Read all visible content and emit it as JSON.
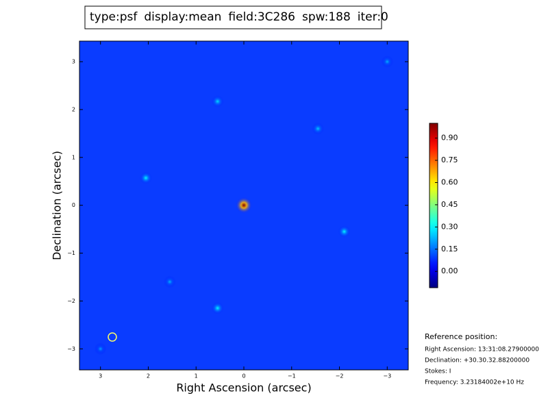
{
  "chart_data": {
    "type": "image",
    "title_parts": [
      {
        "text": "type:psf",
        "color": "#000000"
      },
      {
        "text": "display:mean",
        "color": "#ff0000"
      },
      {
        "text": "field:3C286",
        "color": "#000000"
      },
      {
        "text": "spw:188",
        "color": "#000000"
      },
      {
        "text": "iter:0",
        "color": "#000000"
      }
    ],
    "x_label": "Right Ascension (arcsec)",
    "y_label": "Declination (arcsec)",
    "xlim": [
      3.44,
      -3.44
    ],
    "ylim": [
      -3.44,
      3.43
    ],
    "xticks": [
      3,
      2,
      1,
      0,
      {
        "value": -1,
        "label": "−1"
      },
      {
        "value": -2,
        "label": "−2"
      },
      {
        "value": -3,
        "label": "−3"
      }
    ],
    "yticks": [
      3,
      2,
      1,
      0,
      {
        "value": -1,
        "label": "−1"
      },
      {
        "value": -2,
        "label": "−2"
      },
      {
        "value": -3,
        "label": "−3"
      }
    ],
    "colormap": "jet",
    "clim": [
      -0.11,
      1.0
    ],
    "cticks": [
      {
        "value": 0,
        "label": "0.00"
      },
      {
        "value": 0.15,
        "label": "0.15"
      },
      {
        "value": 0.3,
        "label": "0.30"
      },
      {
        "value": 0.45,
        "label": "0.45"
      },
      {
        "value": 0.6,
        "label": "0.60"
      },
      {
        "value": 0.75,
        "label": "0.75"
      },
      {
        "value": 0.9,
        "label": "0.90"
      }
    ],
    "peaks": {
      "x": [
        0,
        2.05,
        -2.1,
        0.55,
        -1.55,
        0.55,
        -3.0,
        1.55,
        3.0
      ],
      "y": [
        0,
        0.57,
        -0.55,
        -2.15,
        1.6,
        2.17,
        3.0,
        -1.6,
        -3.0
      ],
      "values": [
        1.0,
        0.3,
        0.3,
        0.3,
        0.25,
        0.27,
        0.22,
        0.22,
        0.2
      ]
    },
    "reference": {
      "heading": "Reference position:",
      "lines": [
        "Right Ascension: 13:31:08.27900000",
        "Declination: +30.30.32.88200000",
        "Stokes: I",
        "Frequency: 3.23184002e+10 Hz"
      ]
    }
  }
}
